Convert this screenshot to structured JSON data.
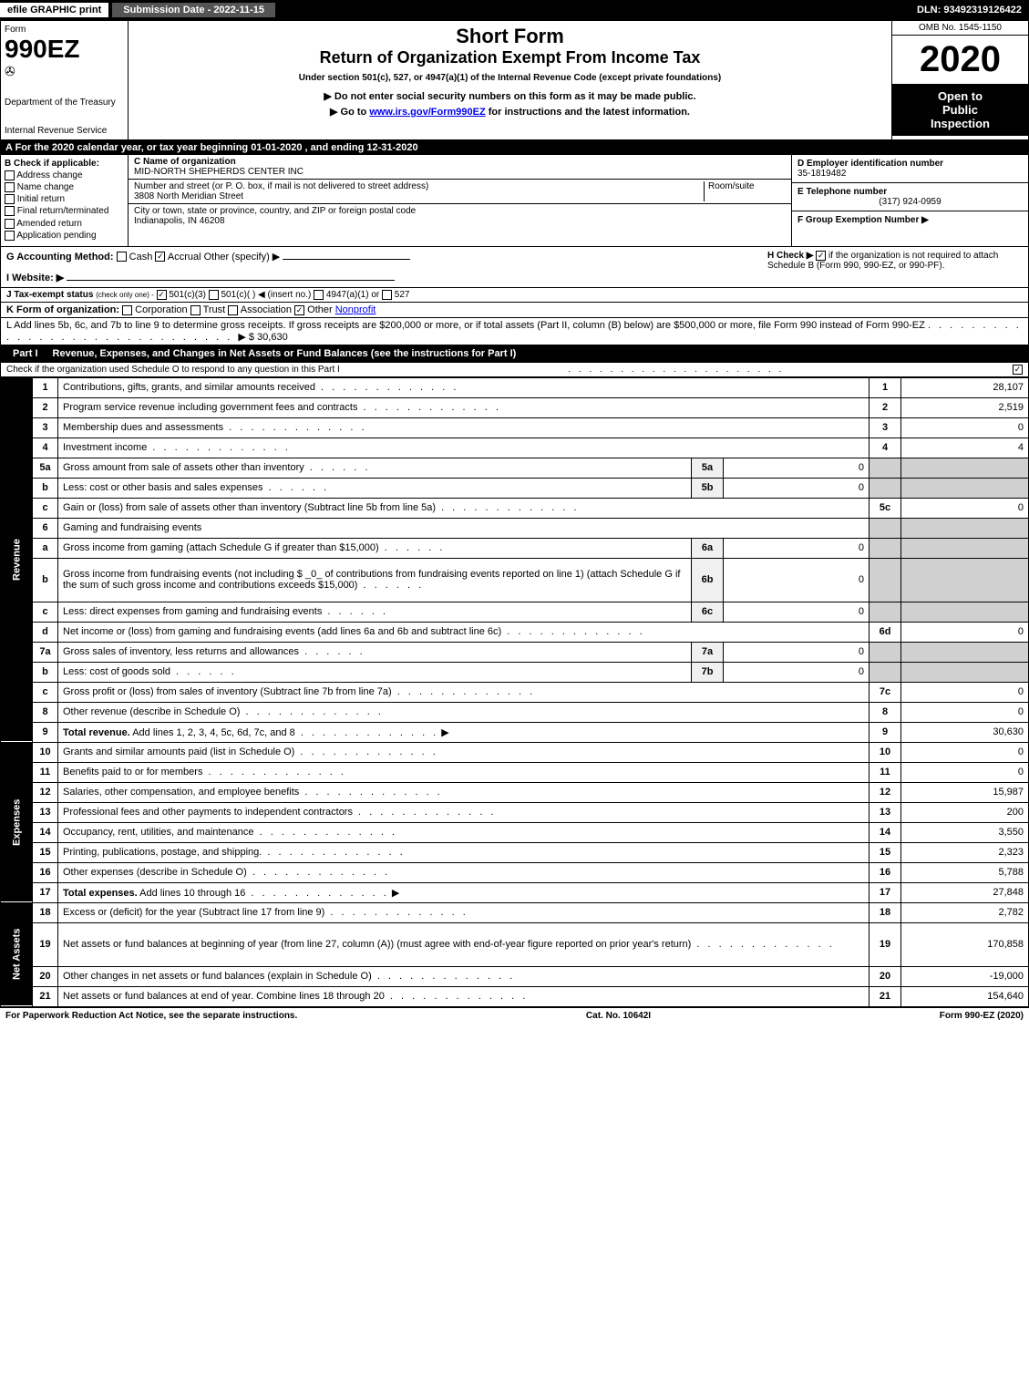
{
  "topbar": {
    "efile": "efile GRAPHIC print",
    "submission": "Submission Date - 2022-11-15",
    "dln": "DLN: 93492319126422"
  },
  "header": {
    "form_label": "Form",
    "form_num": "990EZ",
    "dept": "Department of the Treasury",
    "irs": "Internal Revenue Service",
    "short_form": "Short Form",
    "return_title": "Return of Organization Exempt From Income Tax",
    "under_section": "Under section 501(c), 527, or 4947(a)(1) of the Internal Revenue Code (except private foundations)",
    "do_not": "▶ Do not enter social security numbers on this form as it may be made public.",
    "goto_pre": "▶ Go to ",
    "goto_link": "www.irs.gov/Form990EZ",
    "goto_post": " for instructions and the latest information.",
    "omb": "OMB No. 1545-1150",
    "year": "2020",
    "open1": "Open to",
    "open2": "Public",
    "open3": "Inspection"
  },
  "row_a": "A For the 2020 calendar year, or tax year beginning 01-01-2020 , and ending 12-31-2020",
  "entity": {
    "b_label": "B Check if applicable:",
    "opts": [
      "Address change",
      "Name change",
      "Initial return",
      "Final return/terminated",
      "Amended return",
      "Application pending"
    ],
    "c_label": "C Name of organization",
    "c_name": "MID-NORTH SHEPHERDS CENTER INC",
    "addr_label": "Number and street (or P. O. box, if mail is not delivered to street address)",
    "room_label": "Room/suite",
    "addr": "3808 North Meridian Street",
    "city_label": "City or town, state or province, country, and ZIP or foreign postal code",
    "city": "Indianapolis, IN  46208",
    "d_label": "D Employer identification number",
    "d_val": "35-1819482",
    "e_label": "E Telephone number",
    "e_val": "(317) 924-0959",
    "f_label": "F Group Exemption Number  ▶"
  },
  "gh": {
    "g_label": "G Accounting Method:",
    "g_cash": "Cash",
    "g_accrual": "Accrual",
    "g_other": "Other (specify) ▶",
    "i_label": "I Website: ▶",
    "h_label": "H  Check ▶",
    "h_text": "if the organization is not required to attach Schedule B (Form 990, 990-EZ, or 990-PF)."
  },
  "line_j": {
    "label": "J Tax-exempt status",
    "sub": "(check only one) -",
    "o1": "501(c)(3)",
    "o2": "501(c)(  ) ◀ (insert no.)",
    "o3": "4947(a)(1) or",
    "o4": "527"
  },
  "line_k": {
    "label": "K Form of organization:",
    "o1": "Corporation",
    "o2": "Trust",
    "o3": "Association",
    "o4": "Other",
    "other_val": "Nonprofit"
  },
  "line_l": {
    "text": "L Add lines 5b, 6c, and 7b to line 9 to determine gross receipts. If gross receipts are $200,000 or more, or if total assets (Part II, column (B) below) are $500,000 or more, file Form 990 instead of Form 990-EZ",
    "amount": "▶ $ 30,630"
  },
  "part1": {
    "label": "Part I",
    "title": "Revenue, Expenses, and Changes in Net Assets or Fund Balances (see the instructions for Part I)",
    "check": "Check if the organization used Schedule O to respond to any question in this Part I"
  },
  "side_labels": {
    "revenue": "Revenue",
    "expenses": "Expenses",
    "net": "Net Assets"
  },
  "rows": [
    {
      "n": "1",
      "d": "Contributions, gifts, grants, and similar amounts received",
      "c": "1",
      "v": "28,107"
    },
    {
      "n": "2",
      "d": "Program service revenue including government fees and contracts",
      "c": "2",
      "v": "2,519"
    },
    {
      "n": "3",
      "d": "Membership dues and assessments",
      "c": "3",
      "v": "0"
    },
    {
      "n": "4",
      "d": "Investment income",
      "c": "4",
      "v": "4"
    },
    {
      "n": "5a",
      "d": "Gross amount from sale of assets other than inventory",
      "sn": "5a",
      "sv": "0"
    },
    {
      "n": "b",
      "d": "Less: cost or other basis and sales expenses",
      "sn": "5b",
      "sv": "0"
    },
    {
      "n": "c",
      "d": "Gain or (loss) from sale of assets other than inventory (Subtract line 5b from line 5a)",
      "c": "5c",
      "v": "0"
    },
    {
      "n": "6",
      "d": "Gaming and fundraising events"
    },
    {
      "n": "a",
      "d": "Gross income from gaming (attach Schedule G if greater than $15,000)",
      "sn": "6a",
      "sv": "0"
    },
    {
      "n": "b",
      "d": "Gross income from fundraising events (not including $ _0_ of contributions from fundraising events reported on line 1) (attach Schedule G if the sum of such gross income and contributions exceeds $15,000)",
      "sn": "6b",
      "sv": "0",
      "tall": true
    },
    {
      "n": "c",
      "d": "Less: direct expenses from gaming and fundraising events",
      "sn": "6c",
      "sv": "0"
    },
    {
      "n": "d",
      "d": "Net income or (loss) from gaming and fundraising events (add lines 6a and 6b and subtract line 6c)",
      "c": "6d",
      "v": "0"
    },
    {
      "n": "7a",
      "d": "Gross sales of inventory, less returns and allowances",
      "sn": "7a",
      "sv": "0"
    },
    {
      "n": "b",
      "d": "Less: cost of goods sold",
      "sn": "7b",
      "sv": "0"
    },
    {
      "n": "c",
      "d": "Gross profit or (loss) from sales of inventory (Subtract line 7b from line 7a)",
      "c": "7c",
      "v": "0"
    },
    {
      "n": "8",
      "d": "Other revenue (describe in Schedule O)",
      "c": "8",
      "v": "0"
    },
    {
      "n": "9",
      "d": "Total revenue. Add lines 1, 2, 3, 4, 5c, 6d, 7c, and 8",
      "c": "9",
      "v": "30,630",
      "arrow": true,
      "bold": true
    }
  ],
  "exp_rows": [
    {
      "n": "10",
      "d": "Grants and similar amounts paid (list in Schedule O)",
      "c": "10",
      "v": "0"
    },
    {
      "n": "11",
      "d": "Benefits paid to or for members",
      "c": "11",
      "v": "0"
    },
    {
      "n": "12",
      "d": "Salaries, other compensation, and employee benefits",
      "c": "12",
      "v": "15,987"
    },
    {
      "n": "13",
      "d": "Professional fees and other payments to independent contractors",
      "c": "13",
      "v": "200"
    },
    {
      "n": "14",
      "d": "Occupancy, rent, utilities, and maintenance",
      "c": "14",
      "v": "3,550"
    },
    {
      "n": "15",
      "d": "Printing, publications, postage, and shipping.",
      "c": "15",
      "v": "2,323"
    },
    {
      "n": "16",
      "d": "Other expenses (describe in Schedule O)",
      "c": "16",
      "v": "5,788"
    },
    {
      "n": "17",
      "d": "Total expenses. Add lines 10 through 16",
      "c": "17",
      "v": "27,848",
      "arrow": true,
      "bold": true
    }
  ],
  "net_rows": [
    {
      "n": "18",
      "d": "Excess or (deficit) for the year (Subtract line 17 from line 9)",
      "c": "18",
      "v": "2,782"
    },
    {
      "n": "19",
      "d": "Net assets or fund balances at beginning of year (from line 27, column (A)) (must agree with end-of-year figure reported on prior year's return)",
      "c": "19",
      "v": "170,858",
      "tall": true
    },
    {
      "n": "20",
      "d": "Other changes in net assets or fund balances (explain in Schedule O)",
      "c": "20",
      "v": "-19,000"
    },
    {
      "n": "21",
      "d": "Net assets or fund balances at end of year. Combine lines 18 through 20",
      "c": "21",
      "v": "154,640"
    }
  ],
  "footer": {
    "left": "For Paperwork Reduction Act Notice, see the separate instructions.",
    "center": "Cat. No. 10642I",
    "right_pre": "Form ",
    "right_bold": "990-EZ",
    "right_post": " (2020)"
  }
}
